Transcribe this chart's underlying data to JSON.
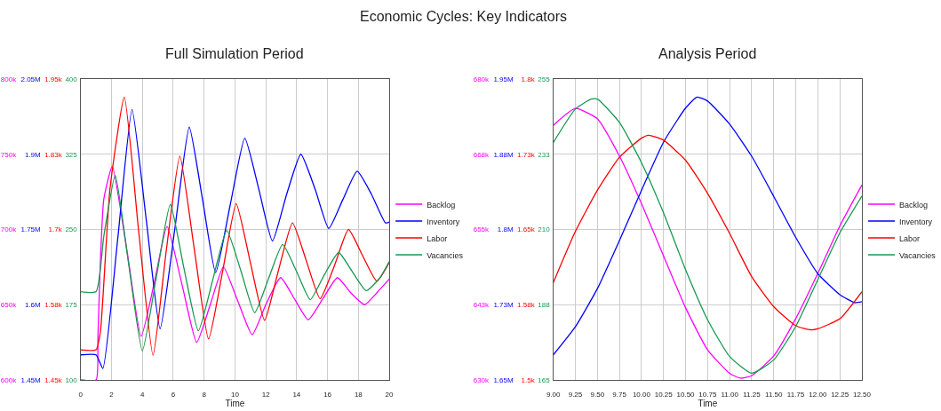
{
  "chart_data": [
    {
      "type": "line",
      "title": "Full Simulation Period",
      "xlabel": "Time",
      "annotations": [
        "Economic Cycles: Key Indicators"
      ],
      "grid": true,
      "legend": "right",
      "marker": "none",
      "line_style": "solid",
      "xlim": [
        0,
        20
      ],
      "xticks": [
        0,
        2,
        4,
        6,
        8,
        10,
        12,
        14,
        16,
        18,
        20
      ],
      "ylim": [
        600000,
        800000
      ],
      "yticks": [
        {
          "value": 600000,
          "label": "600k"
        },
        {
          "value": 650000,
          "label": "650k"
        },
        {
          "value": 700000,
          "label": "700k"
        },
        {
          "value": 750000,
          "label": "750k"
        },
        {
          "value": 800000,
          "label": "800k"
        }
      ],
      "y2lim": [
        1450000,
        2050000
      ],
      "y2ticks": [
        {
          "value": 1450000,
          "label": "1.45M"
        },
        {
          "value": 1600000,
          "label": "1.6M"
        },
        {
          "value": 1750000,
          "label": "1.75M"
        },
        {
          "value": 1900000,
          "label": "1.9M"
        },
        {
          "value": 2050000,
          "label": "2.05M"
        }
      ],
      "y3lim": [
        1450,
        1950
      ],
      "y3ticks": [
        {
          "value": 1450,
          "label": "1.45k"
        },
        {
          "value": 1575,
          "label": "1.58k"
        },
        {
          "value": 1700,
          "label": "1.7k"
        },
        {
          "value": 1825,
          "label": "1.83k"
        },
        {
          "value": 1950,
          "label": "1.95k"
        }
      ],
      "series": [
        {
          "name": "Backlog",
          "color": "#ff00ff",
          "axis": "y",
          "x": [
            0,
            1,
            1.12,
            1.25,
            1.5,
            2.05,
            3,
            3.92,
            4.8,
            5.6,
            6.6,
            7.52,
            8.4,
            9.25,
            10.2,
            11.12,
            12,
            12.96,
            13.85,
            14.75,
            15.7,
            16.64,
            17.5,
            18.4,
            19.2,
            20
          ],
          "values": [
            600000,
            600000,
            628000,
            670000,
            720000,
            742000,
            686000,
            629000,
            666000,
            702000,
            662000,
            625000,
            650000,
            675000,
            652000,
            630000,
            650000,
            668000,
            654000,
            640000,
            654000,
            668000,
            658000,
            650000,
            658000,
            667000
          ]
        },
        {
          "name": "Inventory",
          "color": "#0000ff",
          "axis": "y2",
          "x": [
            0,
            1,
            1.44,
            2.4,
            3.33,
            4.25,
            5.15,
            6.1,
            7.04,
            7.9,
            8.75,
            9.7,
            10.64,
            11.55,
            12.43,
            13.35,
            14.27,
            15.2,
            16.08,
            17,
            17.92,
            18.85,
            19.76,
            20
          ],
          "values": [
            1500000,
            1500000,
            1473000,
            1730000,
            1989000,
            1770000,
            1552000,
            1750000,
            1954000,
            1810000,
            1664000,
            1800000,
            1932000,
            1830000,
            1727000,
            1820000,
            1900000,
            1830000,
            1752000,
            1810000,
            1866000,
            1820000,
            1763000,
            1765000
          ]
        },
        {
          "name": "Labor",
          "color": "#ff0000",
          "axis": "y3",
          "x": [
            0,
            1,
            1.28,
            1.9,
            2.83,
            3.75,
            4.69,
            5.55,
            6.43,
            7.35,
            8.29,
            9.2,
            10.08,
            11,
            11.92,
            12.8,
            13.73,
            14.6,
            15.52,
            16.45,
            17.36,
            18.3,
            19.2,
            20
          ],
          "values": [
            1500,
            1500,
            1530,
            1767,
            1920,
            1700,
            1491,
            1665,
            1822,
            1670,
            1518,
            1630,
            1743,
            1645,
            1549,
            1630,
            1711,
            1650,
            1585,
            1640,
            1700,
            1655,
            1614,
            1645
          ]
        }
      ]
    },
    {
      "type": "line",
      "tick_labels": "y",
      "legend": "right",
      "marker": "none",
      "line_style": "solid",
      "xlim": [
        0,
        20
      ],
      "ylim": [
        100,
        400
      ],
      "yticks": [
        100,
        175,
        250,
        325,
        400
      ],
      "series": [
        {
          "name": "Vacancies",
          "color": "#17994f",
          "x": [
            0,
            1,
            1.5,
            2.24,
            3.1,
            4,
            4.9,
            5.81,
            6.7,
            7.63,
            8.55,
            9.47,
            10.4,
            11.28,
            12.2,
            13.09,
            14,
            14.88,
            15.8,
            16.72,
            17.6,
            18.51,
            19.4,
            20
          ],
          "values": [
            188,
            188,
            243,
            304,
            217,
            129,
            202,
            275,
            211,
            149,
            199,
            249,
            208,
            167,
            202,
            235,
            208,
            180,
            205,
            227,
            208,
            189,
            202,
            218
          ]
        }
      ]
    },
    {
      "type": "line",
      "title": "Analysis Period",
      "xlabel": "Time",
      "grid": true,
      "legend": "right",
      "marker": "none",
      "line_style": "solid",
      "xlim": [
        9,
        12.5
      ],
      "xticks": [
        {
          "value": 9,
          "label": "9.00"
        },
        {
          "value": 9.25,
          "label": "9.25"
        },
        {
          "value": 9.5,
          "label": "9.50"
        },
        {
          "value": 9.75,
          "label": "9.75"
        },
        {
          "value": 10,
          "label": "10.00"
        },
        {
          "value": 10.25,
          "label": "10.25"
        },
        {
          "value": 10.5,
          "label": "10.50"
        },
        {
          "value": 10.75,
          "label": "10.75"
        },
        {
          "value": 11,
          "label": "11.00"
        },
        {
          "value": 11.25,
          "label": "11.25"
        },
        {
          "value": 11.5,
          "label": "11.50"
        },
        {
          "value": 11.75,
          "label": "11.75"
        },
        {
          "value": 12,
          "label": "12.00"
        },
        {
          "value": 12.25,
          "label": "12.25"
        },
        {
          "value": 12.5,
          "label": "12.50"
        }
      ],
      "ylim": [
        630000,
        680000
      ],
      "yticks": [
        {
          "value": 630000,
          "label": "630k"
        },
        {
          "value": 642500,
          "label": "643k"
        },
        {
          "value": 655000,
          "label": "655k"
        },
        {
          "value": 667500,
          "label": "668k"
        },
        {
          "value": 680000,
          "label": "680k"
        }
      ],
      "y2lim": [
        1650000,
        1950000
      ],
      "y2ticks": [
        {
          "value": 1650000,
          "label": "1.65M"
        },
        {
          "value": 1725000,
          "label": "1.73M"
        },
        {
          "value": 1800000,
          "label": "1.8M"
        },
        {
          "value": 1875000,
          "label": "1.88M"
        },
        {
          "value": 1950000,
          "label": "1.95M"
        }
      ],
      "y3lim": [
        1500,
        1800
      ],
      "y3ticks": [
        {
          "value": 1500,
          "label": "1.5k"
        },
        {
          "value": 1575,
          "label": "1.58k"
        },
        {
          "value": 1650,
          "label": "1.65k"
        },
        {
          "value": 1725,
          "label": "1.73k"
        },
        {
          "value": 1800,
          "label": "1.8k"
        }
      ],
      "series": [
        {
          "name": "Backlog",
          "color": "#ff00ff",
          "axis": "y",
          "x": [
            9,
            9.25,
            9.5,
            9.75,
            10,
            10.25,
            10.5,
            10.75,
            11,
            11.12,
            11.25,
            11.5,
            11.75,
            12,
            12.25,
            12.5
          ],
          "values": [
            672300,
            675100,
            673400,
            667200,
            659300,
            650600,
            642000,
            635000,
            631100,
            630300,
            630700,
            634000,
            640200,
            647700,
            655600,
            662400
          ]
        },
        {
          "name": "Inventory",
          "color": "#0000ff",
          "axis": "y2",
          "x": [
            9,
            9.25,
            9.5,
            9.75,
            10,
            10.25,
            10.5,
            10.63,
            10.75,
            11,
            11.25,
            11.5,
            11.75,
            12,
            12.25,
            12.42,
            12.5
          ],
          "values": [
            1675000,
            1703000,
            1741000,
            1789000,
            1839000,
            1887000,
            1921000,
            1932000,
            1928000,
            1905000,
            1873000,
            1833000,
            1792000,
            1756000,
            1735000,
            1727000,
            1728000
          ]
        },
        {
          "name": "Labor",
          "color": "#ff0000",
          "axis": "y3",
          "x": [
            9,
            9.25,
            9.5,
            9.75,
            10,
            10.08,
            10.25,
            10.5,
            10.75,
            11,
            11.25,
            11.5,
            11.75,
            11.92,
            12,
            12.25,
            12.5
          ],
          "values": [
            1597,
            1648,
            1689,
            1722,
            1741,
            1744,
            1739,
            1719,
            1686,
            1646,
            1603,
            1573,
            1554,
            1550,
            1551,
            1561,
            1588
          ]
        }
      ]
    },
    {
      "type": "line",
      "tick_labels": "y",
      "legend": "right",
      "marker": "none",
      "line_style": "solid",
      "xlim": [
        9,
        12.5
      ],
      "ylim": [
        165,
        255
      ],
      "yticks": [
        165,
        {
          "value": 187.5,
          "label": "188"
        },
        210,
        {
          "value": 232.5,
          "label": "233"
        },
        255
      ],
      "series": [
        {
          "name": "Vacancies",
          "color": "#17994f",
          "x": [
            9,
            9.25,
            9.43,
            9.5,
            9.75,
            10,
            10.25,
            10.5,
            10.75,
            11,
            11.25,
            11.5,
            11.75,
            12,
            12.25,
            12.5
          ],
          "values": [
            236,
            246,
            249,
            249,
            242,
            230,
            215,
            198,
            183,
            172,
            167,
            171,
            181,
            195,
            209,
            220
          ]
        }
      ]
    }
  ]
}
